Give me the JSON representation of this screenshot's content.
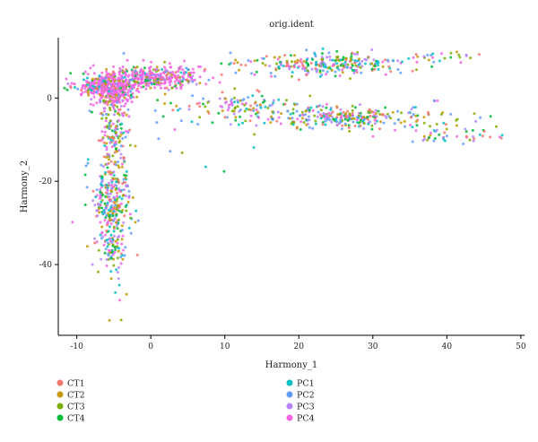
{
  "chart_data": {
    "type": "scatter",
    "title": "orig.ident",
    "xlabel": "Harmony_1",
    "ylabel": "Harmony_2",
    "xlim": [
      -12.5,
      50.5
    ],
    "ylim": [
      -57,
      14.5
    ],
    "x_ticks": [
      -10,
      0,
      10,
      20,
      30,
      40,
      50
    ],
    "y_ticks": [
      0,
      -20,
      -40
    ],
    "grid": false,
    "legend_position": "bottom",
    "series": [
      {
        "name": "CT1",
        "color": "#F8766D"
      },
      {
        "name": "CT2",
        "color": "#C49A00"
      },
      {
        "name": "CT3",
        "color": "#7CAE00"
      },
      {
        "name": "CT4",
        "color": "#00BA38"
      },
      {
        "name": "PC1",
        "color": "#00BFC4"
      },
      {
        "name": "PC2",
        "color": "#619CFF"
      },
      {
        "name": "PC3",
        "color": "#B983FF"
      },
      {
        "name": "PC4",
        "color": "#F564E3"
      }
    ],
    "clusters": [
      {
        "cx": -6.0,
        "cy": 3.0,
        "sx": 2.0,
        "sy": 1.5,
        "n": 320
      },
      {
        "cx": 0.5,
        "cy": 5.0,
        "sx": 3.0,
        "sy": 1.4,
        "n": 360
      },
      {
        "cx": -5.0,
        "cy": 0.0,
        "sx": 1.2,
        "sy": 2.0,
        "n": 140
      },
      {
        "cx": -5.0,
        "cy": -9.0,
        "sx": 1.0,
        "sy": 3.5,
        "n": 110
      },
      {
        "cx": -5.2,
        "cy": -25.0,
        "sx": 1.3,
        "sy": 5.5,
        "n": 280
      },
      {
        "cx": -5.0,
        "cy": -37.0,
        "sx": 0.9,
        "sy": 3.0,
        "n": 60
      },
      {
        "cx": 24.0,
        "cy": 8.2,
        "sx": 5.5,
        "sy": 1.3,
        "n": 260
      },
      {
        "cx": 26.0,
        "cy": -4.5,
        "sx": 6.5,
        "sy": 1.4,
        "n": 300
      },
      {
        "cx": 12.0,
        "cy": -1.5,
        "sx": 4.0,
        "sy": 1.3,
        "n": 80
      },
      {
        "cx": 40.0,
        "cy": -9.0,
        "sx": 3.5,
        "sy": 1.2,
        "n": 45
      },
      {
        "cx": 39.0,
        "cy": 10.0,
        "sx": 3.0,
        "sy": 0.8,
        "n": 25
      },
      {
        "cx": 5.0,
        "cy": -5.0,
        "sx": 5.0,
        "sy": 6.0,
        "n": 40
      },
      {
        "cx": -4.5,
        "cy": -48.0,
        "sx": 0.8,
        "sy": 3.5,
        "n": 8
      }
    ]
  }
}
